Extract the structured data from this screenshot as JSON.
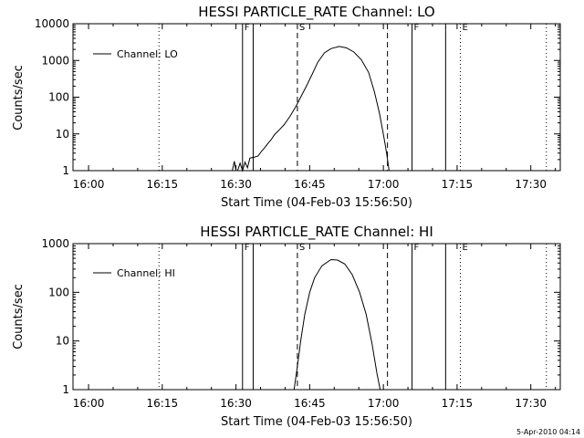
{
  "footer_timestamp": "5-Apr-2010 04:14",
  "chart_data": [
    {
      "type": "line",
      "title": "HESSI PARTICLE_RATE Channel: LO",
      "xlabel": "Start Time (04-Feb-03 15:56:50)",
      "ylabel": "Counts/sec",
      "y_scale": "log",
      "xlim": [
        "15:56:50",
        "17:36:00"
      ],
      "ylim": [
        1,
        10000
      ],
      "x_ticks": [
        "16:00",
        "16:15",
        "16:30",
        "16:45",
        "17:00",
        "17:15",
        "17:30"
      ],
      "y_ticks": [
        "1",
        "10",
        "100",
        "1000",
        "10000"
      ],
      "legend": {
        "position": "top-left",
        "label": "Channel: LO"
      },
      "series": [
        {
          "name": "Channel: LO",
          "points": [
            [
              "16:29:15",
              1
            ],
            [
              "16:29:40",
              1.8
            ],
            [
              "16:30:00",
              1
            ],
            [
              "16:30:20",
              1
            ],
            [
              "16:30:50",
              1.6
            ],
            [
              "16:31:20",
              1
            ],
            [
              "16:31:50",
              1.7
            ],
            [
              "16:32:20",
              1.2
            ],
            [
              "16:32:50",
              2.2
            ],
            [
              "16:33:40",
              2.3
            ],
            [
              "16:34:30",
              2.5
            ],
            [
              "16:35:10",
              3.3
            ],
            [
              "16:35:50",
              4.2
            ],
            [
              "16:36:30",
              5.5
            ],
            [
              "16:37:10",
              7
            ],
            [
              "16:37:50",
              9.5
            ],
            [
              "16:38:50",
              13
            ],
            [
              "16:39:50",
              18
            ],
            [
              "16:41:00",
              30
            ],
            [
              "16:42:10",
              55
            ],
            [
              "16:43:10",
              100
            ],
            [
              "16:44:20",
              200
            ],
            [
              "16:45:30",
              420
            ],
            [
              "16:46:40",
              900
            ],
            [
              "16:48:00",
              1600
            ],
            [
              "16:49:20",
              2100
            ],
            [
              "16:51:00",
              2400
            ],
            [
              "16:52:30",
              2200
            ],
            [
              "16:54:00",
              1700
            ],
            [
              "16:55:30",
              1050
            ],
            [
              "16:57:00",
              470
            ],
            [
              "16:58:10",
              140
            ],
            [
              "16:59:10",
              38
            ],
            [
              "17:00:00",
              10
            ],
            [
              "17:00:40",
              3
            ],
            [
              "17:01:10",
              1
            ]
          ]
        }
      ],
      "markers": [
        {
          "label": "F",
          "time": "16:31:20",
          "line": "solid"
        },
        {
          "time": "16:33:30",
          "line": "solid"
        },
        {
          "label": "S",
          "time": "16:42:30",
          "line": "dashed"
        },
        {
          "time": "17:00:50",
          "line": "dashed"
        },
        {
          "label": "F",
          "time": "17:05:50",
          "line": "solid"
        },
        {
          "time": "17:12:40",
          "line": "solid"
        },
        {
          "label": "E",
          "time": "17:15:40",
          "line": "dotted"
        },
        {
          "time": "16:14:20",
          "line": "dotted"
        },
        {
          "time": "17:33:10",
          "line": "dotted"
        }
      ]
    },
    {
      "type": "line",
      "title": "HESSI PARTICLE_RATE Channel: HI",
      "xlabel": "Start Time (04-Feb-03 15:56:50)",
      "ylabel": "Counts/sec",
      "y_scale": "log",
      "xlim": [
        "15:56:50",
        "17:36:00"
      ],
      "ylim": [
        1,
        1000
      ],
      "x_ticks": [
        "16:00",
        "16:15",
        "16:30",
        "16:45",
        "17:00",
        "17:15",
        "17:30"
      ],
      "y_ticks": [
        "1",
        "10",
        "100",
        "1000"
      ],
      "legend": {
        "position": "top-left",
        "label": "Channel: HI"
      },
      "series": [
        {
          "name": "Channel: HI",
          "points": [
            [
              "16:41:50",
              1
            ],
            [
              "16:42:30",
              3
            ],
            [
              "16:43:10",
              10
            ],
            [
              "16:44:00",
              35
            ],
            [
              "16:45:00",
              100
            ],
            [
              "16:46:00",
              200
            ],
            [
              "16:47:30",
              350
            ],
            [
              "16:49:20",
              470
            ],
            [
              "16:50:40",
              460
            ],
            [
              "16:52:10",
              380
            ],
            [
              "16:53:40",
              230
            ],
            [
              "16:55:10",
              100
            ],
            [
              "16:56:30",
              35
            ],
            [
              "16:57:40",
              9
            ],
            [
              "16:58:40",
              2.2
            ],
            [
              "16:59:20",
              1
            ]
          ]
        }
      ],
      "markers": [
        {
          "label": "F",
          "time": "16:31:20",
          "line": "solid"
        },
        {
          "time": "16:33:30",
          "line": "solid"
        },
        {
          "label": "S",
          "time": "16:42:30",
          "line": "dashed"
        },
        {
          "time": "17:00:50",
          "line": "dashed"
        },
        {
          "label": "F",
          "time": "17:05:50",
          "line": "solid"
        },
        {
          "time": "17:12:40",
          "line": "solid"
        },
        {
          "label": "E",
          "time": "17:15:40",
          "line": "dotted"
        },
        {
          "time": "16:14:20",
          "line": "dotted"
        },
        {
          "time": "17:33:10",
          "line": "dotted"
        }
      ]
    }
  ]
}
